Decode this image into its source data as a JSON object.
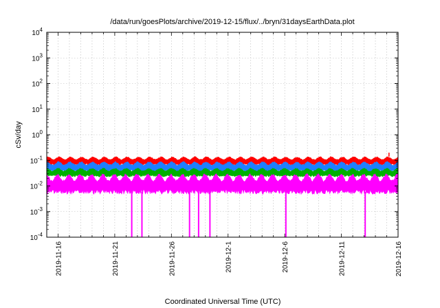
{
  "chart_data": {
    "type": "line",
    "title": "/data/run/goesPlots/archive/2019-12-15/flux/../bryn/31daysEarthData.plot",
    "xlabel": "Coordinated Universal Time (UTC)",
    "ylabel": "cSv/day",
    "y_scale": "log",
    "ylim": [
      0.0001,
      10000
    ],
    "xlim": [
      "2019-11-15",
      "2019-12-16"
    ],
    "grid": true,
    "x_tick_labels": [
      "2019-11-16",
      "2019-11-21",
      "2019-11-26",
      "2019-12-1",
      "2019-12-6",
      "2019-12-11",
      "2019-12-16"
    ],
    "y_tick_labels": [
      {
        "base": "10",
        "exp": "-4"
      },
      {
        "base": "10",
        "exp": "-3"
      },
      {
        "base": "10",
        "exp": "-2"
      },
      {
        "base": "10",
        "exp": "-1"
      },
      {
        "base": "10",
        "exp": "0"
      },
      {
        "base": "10",
        "exp": "1"
      },
      {
        "base": "10",
        "exp": "2"
      },
      {
        "base": "10",
        "exp": "3"
      },
      {
        "base": "10",
        "exp": "4"
      }
    ],
    "series": [
      {
        "color": "#ff0000",
        "typical_range": [
          0.07,
          0.14
        ],
        "peak": 0.2
      },
      {
        "color": "#1f7fff",
        "typical_range": [
          0.04,
          0.09
        ]
      },
      {
        "color": "#00b000",
        "typical_range": [
          0.025,
          0.05
        ]
      },
      {
        "color": "#ff00ff",
        "typical_range": [
          0.006,
          0.03
        ],
        "dropouts_to_ylim_min": [
          "2019-11-22.5",
          "2019-11-23.4",
          "2019-11-27.6",
          "2019-11-28.4",
          "2019-11-29.4",
          "2019-12-6.1",
          "2019-12-13.1"
        ]
      }
    ]
  }
}
